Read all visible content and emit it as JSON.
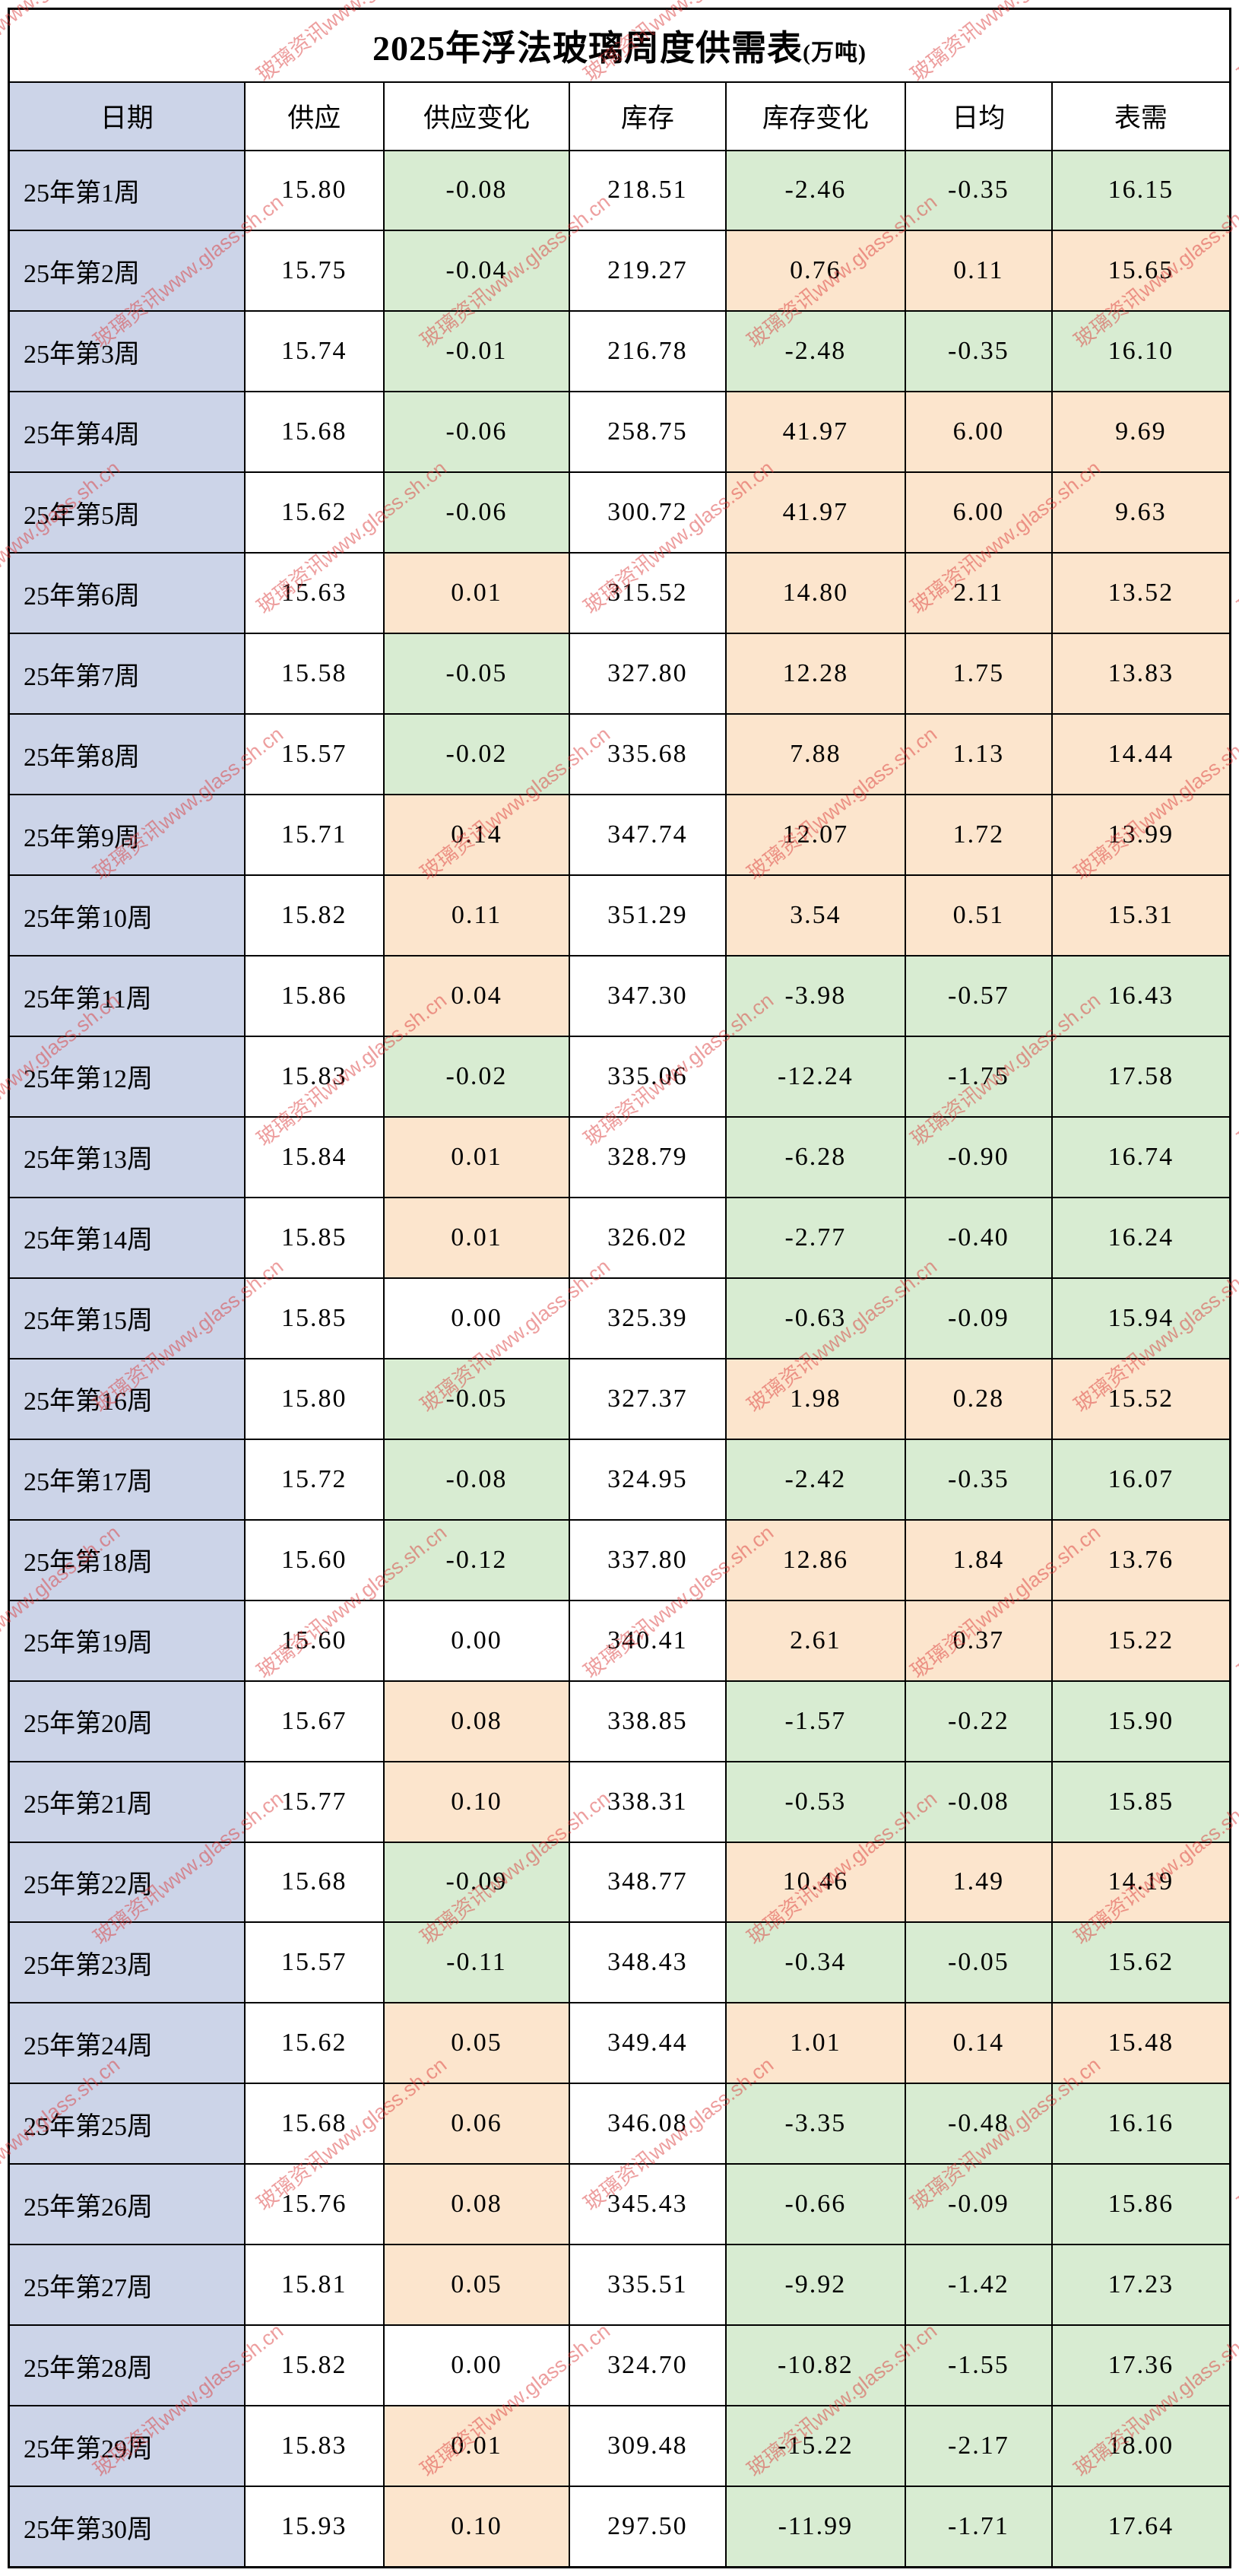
{
  "title": {
    "main": "2025年浮法玻璃周度供需表",
    "unit": "(万吨)"
  },
  "watermark": {
    "text": "玻璃资讯www.glass.sh.cn",
    "color": "rgba(219,58,58,0.55)"
  },
  "colors": {
    "date": "#ccd4e8",
    "plain": "#ffffff",
    "pos": "#fce5cd",
    "neg": "#d8ecd2"
  },
  "presentation": {
    "header_tones": [
      "date",
      "plain",
      "plain",
      "plain",
      "plain",
      "plain",
      "plain"
    ],
    "row_tones": [
      [
        "date",
        "plain",
        "neg",
        "plain",
        "neg",
        "neg",
        "neg"
      ],
      [
        "date",
        "plain",
        "neg",
        "plain",
        "pos",
        "pos",
        "pos"
      ],
      [
        "date",
        "plain",
        "neg",
        "plain",
        "neg",
        "neg",
        "neg"
      ],
      [
        "date",
        "plain",
        "neg",
        "plain",
        "pos",
        "pos",
        "pos"
      ],
      [
        "date",
        "plain",
        "neg",
        "plain",
        "pos",
        "pos",
        "pos"
      ],
      [
        "date",
        "plain",
        "pos",
        "plain",
        "pos",
        "pos",
        "pos"
      ],
      [
        "date",
        "plain",
        "neg",
        "plain",
        "pos",
        "pos",
        "pos"
      ],
      [
        "date",
        "plain",
        "neg",
        "plain",
        "pos",
        "pos",
        "pos"
      ],
      [
        "date",
        "plain",
        "pos",
        "plain",
        "pos",
        "pos",
        "pos"
      ],
      [
        "date",
        "plain",
        "pos",
        "plain",
        "pos",
        "pos",
        "pos"
      ],
      [
        "date",
        "plain",
        "pos",
        "plain",
        "neg",
        "neg",
        "neg"
      ],
      [
        "date",
        "plain",
        "neg",
        "plain",
        "neg",
        "neg",
        "neg"
      ],
      [
        "date",
        "plain",
        "pos",
        "plain",
        "neg",
        "neg",
        "neg"
      ],
      [
        "date",
        "plain",
        "pos",
        "plain",
        "neg",
        "neg",
        "neg"
      ],
      [
        "date",
        "plain",
        "plain",
        "plain",
        "neg",
        "neg",
        "neg"
      ],
      [
        "date",
        "plain",
        "neg",
        "plain",
        "pos",
        "pos",
        "pos"
      ],
      [
        "date",
        "plain",
        "neg",
        "plain",
        "neg",
        "neg",
        "neg"
      ],
      [
        "date",
        "plain",
        "neg",
        "plain",
        "pos",
        "pos",
        "pos"
      ],
      [
        "date",
        "plain",
        "plain",
        "plain",
        "pos",
        "pos",
        "pos"
      ],
      [
        "date",
        "plain",
        "pos",
        "plain",
        "neg",
        "neg",
        "neg"
      ],
      [
        "date",
        "plain",
        "pos",
        "plain",
        "neg",
        "neg",
        "neg"
      ],
      [
        "date",
        "plain",
        "neg",
        "plain",
        "pos",
        "pos",
        "pos"
      ],
      [
        "date",
        "plain",
        "neg",
        "plain",
        "neg",
        "neg",
        "neg"
      ],
      [
        "date",
        "plain",
        "pos",
        "plain",
        "pos",
        "pos",
        "pos"
      ],
      [
        "date",
        "plain",
        "pos",
        "plain",
        "neg",
        "neg",
        "neg"
      ],
      [
        "date",
        "plain",
        "pos",
        "plain",
        "neg",
        "neg",
        "neg"
      ],
      [
        "date",
        "plain",
        "pos",
        "plain",
        "neg",
        "neg",
        "neg"
      ],
      [
        "date",
        "plain",
        "plain",
        "plain",
        "neg",
        "neg",
        "neg"
      ],
      [
        "date",
        "plain",
        "pos",
        "plain",
        "neg",
        "neg",
        "neg"
      ],
      [
        "date",
        "plain",
        "pos",
        "plain",
        "neg",
        "neg",
        "neg"
      ]
    ]
  },
  "chart_data": {
    "type": "table",
    "title": "2025年浮法玻璃周度供需表(万吨)",
    "columns": [
      "日期",
      "供应",
      "供应变化",
      "库存",
      "库存变化",
      "日均",
      "表需"
    ],
    "rows": [
      [
        "25年第1周",
        "15.80",
        "-0.08",
        "218.51",
        "-2.46",
        "-0.35",
        "16.15"
      ],
      [
        "25年第2周",
        "15.75",
        "-0.04",
        "219.27",
        "0.76",
        "0.11",
        "15.65"
      ],
      [
        "25年第3周",
        "15.74",
        "-0.01",
        "216.78",
        "-2.48",
        "-0.35",
        "16.10"
      ],
      [
        "25年第4周",
        "15.68",
        "-0.06",
        "258.75",
        "41.97",
        "6.00",
        "9.69"
      ],
      [
        "25年第5周",
        "15.62",
        "-0.06",
        "300.72",
        "41.97",
        "6.00",
        "9.63"
      ],
      [
        "25年第6周",
        "15.63",
        "0.01",
        "315.52",
        "14.80",
        "2.11",
        "13.52"
      ],
      [
        "25年第7周",
        "15.58",
        "-0.05",
        "327.80",
        "12.28",
        "1.75",
        "13.83"
      ],
      [
        "25年第8周",
        "15.57",
        "-0.02",
        "335.68",
        "7.88",
        "1.13",
        "14.44"
      ],
      [
        "25年第9周",
        "15.71",
        "0.14",
        "347.74",
        "12.07",
        "1.72",
        "13.99"
      ],
      [
        "25年第10周",
        "15.82",
        "0.11",
        "351.29",
        "3.54",
        "0.51",
        "15.31"
      ],
      [
        "25年第11周",
        "15.86",
        "0.04",
        "347.30",
        "-3.98",
        "-0.57",
        "16.43"
      ],
      [
        "25年第12周",
        "15.83",
        "-0.02",
        "335.06",
        "-12.24",
        "-1.75",
        "17.58"
      ],
      [
        "25年第13周",
        "15.84",
        "0.01",
        "328.79",
        "-6.28",
        "-0.90",
        "16.74"
      ],
      [
        "25年第14周",
        "15.85",
        "0.01",
        "326.02",
        "-2.77",
        "-0.40",
        "16.24"
      ],
      [
        "25年第15周",
        "15.85",
        "0.00",
        "325.39",
        "-0.63",
        "-0.09",
        "15.94"
      ],
      [
        "25年第16周",
        "15.80",
        "-0.05",
        "327.37",
        "1.98",
        "0.28",
        "15.52"
      ],
      [
        "25年第17周",
        "15.72",
        "-0.08",
        "324.95",
        "-2.42",
        "-0.35",
        "16.07"
      ],
      [
        "25年第18周",
        "15.60",
        "-0.12",
        "337.80",
        "12.86",
        "1.84",
        "13.76"
      ],
      [
        "25年第19周",
        "15.60",
        "0.00",
        "340.41",
        "2.61",
        "0.37",
        "15.22"
      ],
      [
        "25年第20周",
        "15.67",
        "0.08",
        "338.85",
        "-1.57",
        "-0.22",
        "15.90"
      ],
      [
        "25年第21周",
        "15.77",
        "0.10",
        "338.31",
        "-0.53",
        "-0.08",
        "15.85"
      ],
      [
        "25年第22周",
        "15.68",
        "-0.09",
        "348.77",
        "10.46",
        "1.49",
        "14.19"
      ],
      [
        "25年第23周",
        "15.57",
        "-0.11",
        "348.43",
        "-0.34",
        "-0.05",
        "15.62"
      ],
      [
        "25年第24周",
        "15.62",
        "0.05",
        "349.44",
        "1.01",
        "0.14",
        "15.48"
      ],
      [
        "25年第25周",
        "15.68",
        "0.06",
        "346.08",
        "-3.35",
        "-0.48",
        "16.16"
      ],
      [
        "25年第26周",
        "15.76",
        "0.08",
        "345.43",
        "-0.66",
        "-0.09",
        "15.86"
      ],
      [
        "25年第27周",
        "15.81",
        "0.05",
        "335.51",
        "-9.92",
        "-1.42",
        "17.23"
      ],
      [
        "25年第28周",
        "15.82",
        "0.00",
        "324.70",
        "-10.82",
        "-1.55",
        "17.36"
      ],
      [
        "25年第29周",
        "15.83",
        "0.01",
        "309.48",
        "-15.22",
        "-2.17",
        "18.00"
      ],
      [
        "25年第30周",
        "15.93",
        "0.10",
        "297.50",
        "-11.99",
        "-1.71",
        "17.64"
      ]
    ]
  }
}
